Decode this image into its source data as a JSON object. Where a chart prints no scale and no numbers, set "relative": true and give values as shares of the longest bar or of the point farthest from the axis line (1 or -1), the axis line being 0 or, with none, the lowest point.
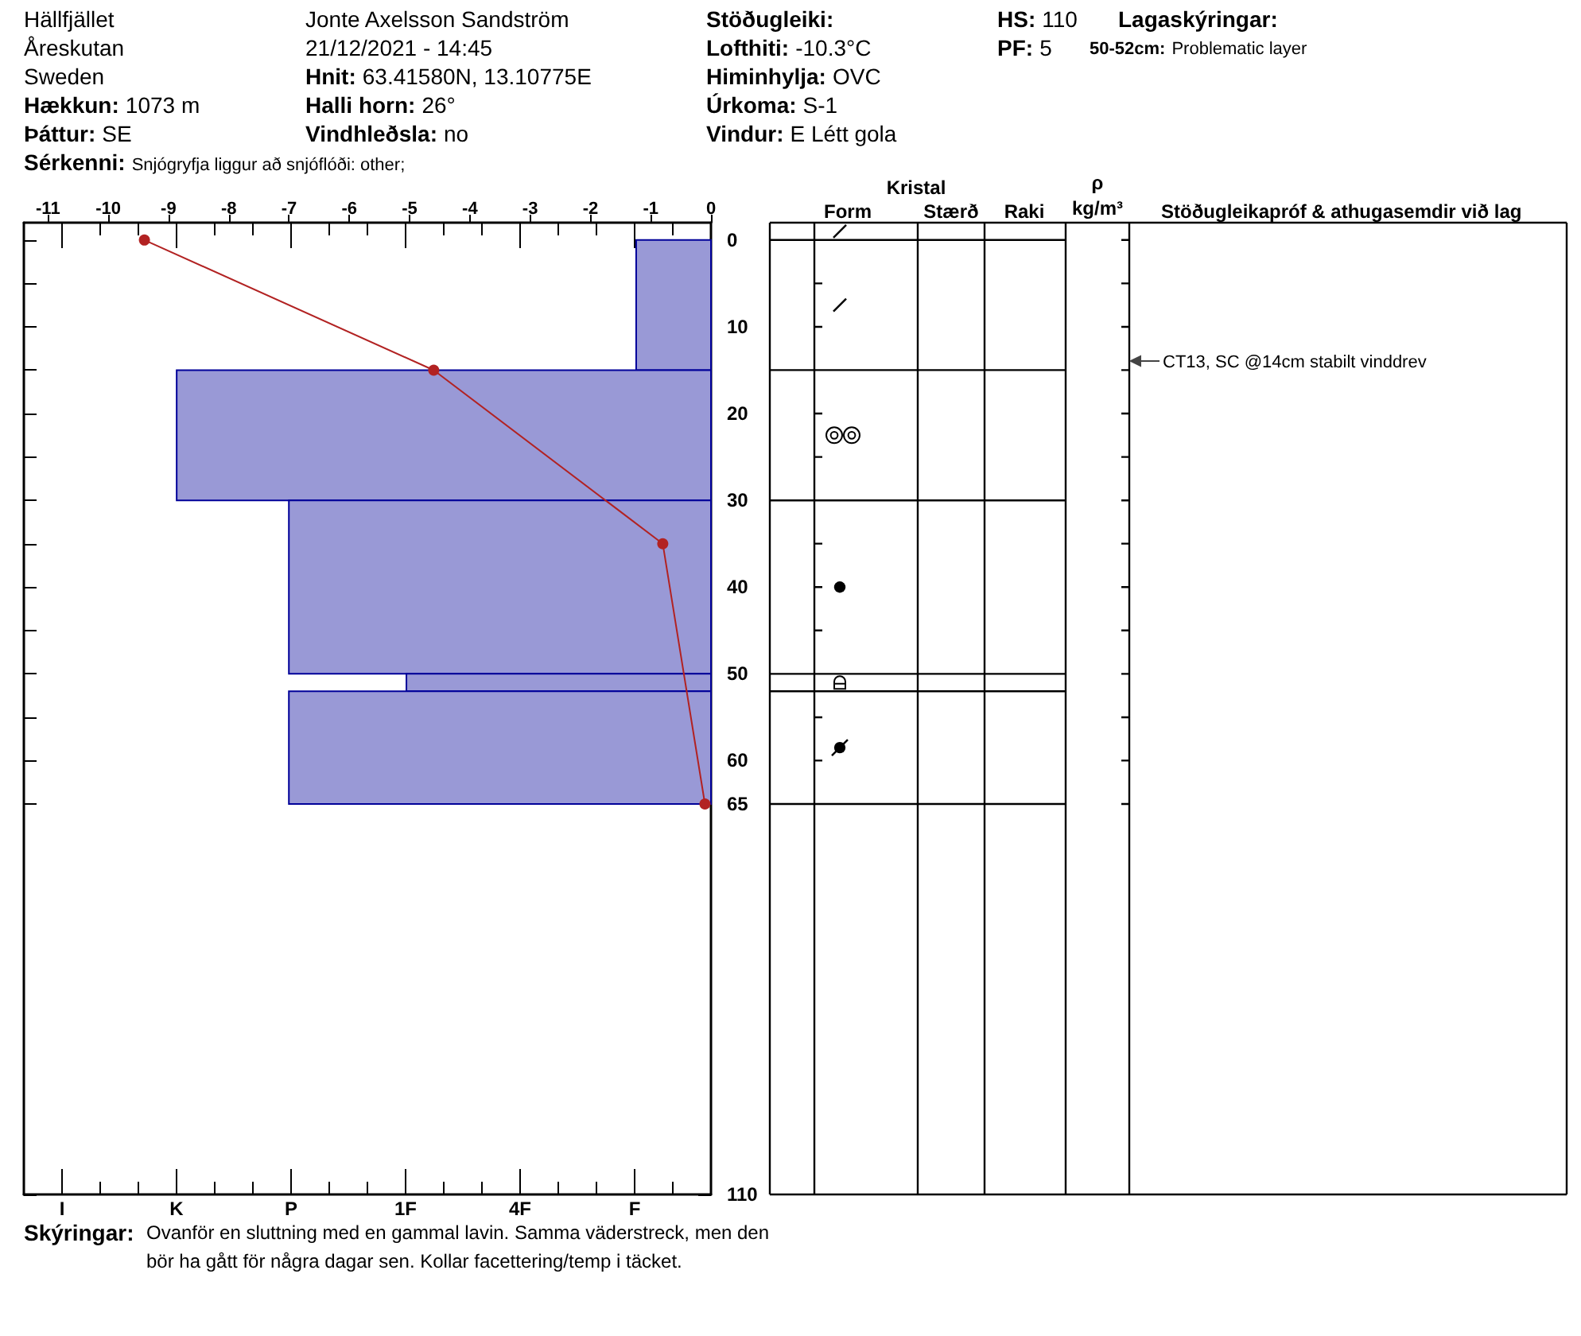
{
  "chart_data": [
    {
      "type": "bar",
      "orientation": "horizontal",
      "relative": true,
      "series": [
        {
          "color": "#9999d6",
          "x": [
            7.5,
            22.5,
            40,
            51,
            58.5
          ],
          "values": [
            -0.14,
            -1,
            -0.79,
            -0.57,
            -0.79
          ]
        }
      ],
      "ylim": [
        110,
        -2
      ],
      "yticks": [
        0,
        {
          "value": 5,
          "label": null
        },
        10,
        {
          "value": 15,
          "label": null
        },
        20,
        {
          "value": 25,
          "label": null
        },
        30,
        {
          "value": 35,
          "label": null
        },
        40,
        {
          "value": 45,
          "label": null
        },
        50,
        {
          "value": 55,
          "label": null
        },
        60,
        65,
        110
      ],
      "grid": false,
      "annotations": [
        "Hällfjället",
        "Åreskutan",
        "Sweden",
        "Hækkun:",
        "1073 m",
        "Þáttur:",
        "SE",
        "Sérkenni:",
        "Snjógryfja liggur að snjóflóði: other;",
        "Jonte Axelsson Sandström",
        "21/12/2021 - 14:45",
        "Hnit:",
        "63.41580N, 13.10775E",
        "Halli horn:",
        "26°",
        "Vindhleðsla:",
        "no",
        "Stöðugleiki:",
        "Lofthiti:",
        "-10.3°C",
        "Himinhylja:",
        "OVC",
        "Úrkoma:",
        "S-1",
        "Vindur:",
        "E Létt gola",
        "HS:",
        "110",
        "PF:",
        "5",
        "Lagaskýringar:",
        "50-52cm:",
        "Problematic layer",
        "Skýringar:",
        "Ovanför en sluttning med en gammal lavin. Samma väderstreck, men den bör ha gått för några dagar sen. Kollar facettering/temp i täcket.",
        "Kristal",
        "Form",
        "Stærð",
        "Raki",
        "ρ",
        "kg/m³",
        "Stöðugleikapróf & athugasemdir við lag",
        "CT13, SC @14cm stabilt vinddrev",
        "I",
        "K",
        "P",
        "1F",
        "4F",
        "F"
      ]
    },
    {
      "type": "line",
      "orientation": "horizontal",
      "color": "#b22222",
      "x": [
        0,
        15,
        35,
        65
      ],
      "values": [
        -9.4,
        -4.6,
        -0.8,
        -0.1
      ],
      "xlim": [
        -11.4,
        0
      ],
      "xticks": [
        -11,
        -10,
        -9,
        -8,
        -7,
        -6,
        -5,
        -4,
        -3,
        -2,
        -1,
        0
      ],
      "ylim": [
        110,
        -2
      ],
      "tick_labels": "x",
      "grid": false,
      "marker": "circle"
    }
  ]
}
